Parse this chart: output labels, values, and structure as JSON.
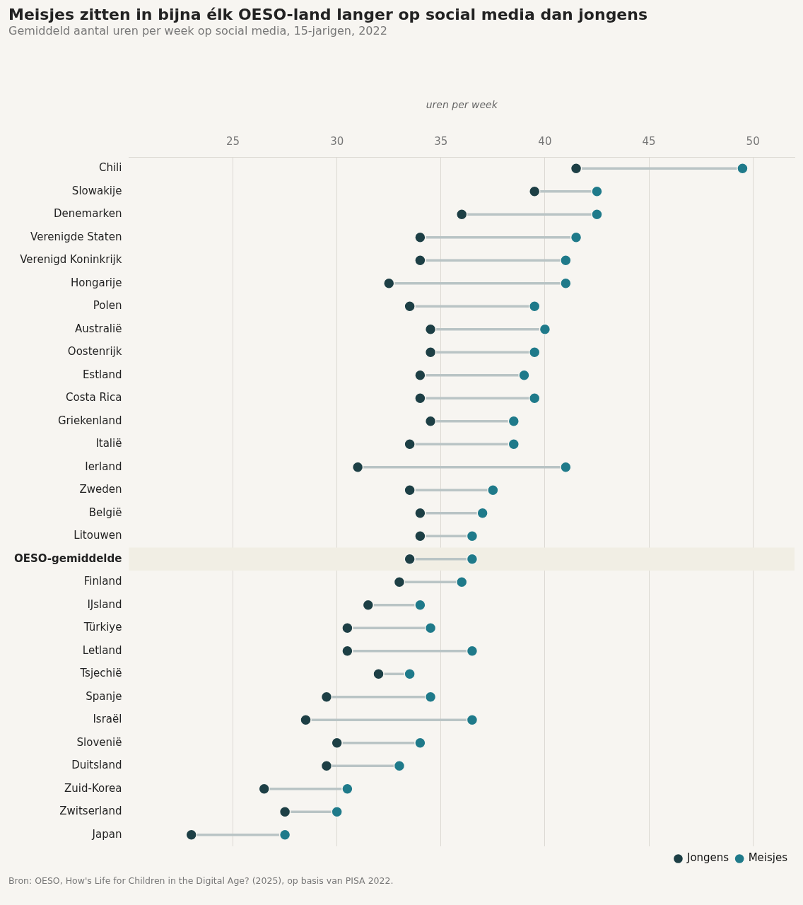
{
  "chart_data": {
    "type": "scatter",
    "orientation": "horizontal",
    "title": "Meisjes zitten in bijna élk OESO-land langer op social media dan jongens",
    "subtitle": "Gemiddeld aantal uren per week op social media, 15-jarigen, 2022",
    "xlabel": "uren per week",
    "categories": [
      "Chili",
      "Slowakije",
      "Denemarken",
      "Verenigde Staten",
      "Verenigd Koninkrijk",
      "Hongarije",
      "Polen",
      "Australië",
      "Oostenrijk",
      "Estland",
      "Costa Rica",
      "Griekenland",
      "Italië",
      "Ierland",
      "Zweden",
      "België",
      "Litouwen",
      "OESO-gemiddelde",
      "Finland",
      "IJsland",
      "Türkiye",
      "Letland",
      "Tsjechië",
      "Spanje",
      "Israël",
      "Slovenië",
      "Duitsland",
      "Zuid-Korea",
      "Zwitserland",
      "Japan"
    ],
    "series": [
      {
        "name": "Jongens",
        "color": "#1d3f45",
        "values": [
          41.5,
          39.5,
          36,
          34,
          34,
          32.5,
          33.5,
          34.5,
          34.5,
          34,
          34,
          34.5,
          33.5,
          31,
          33.5,
          34,
          34,
          33.5,
          33,
          31.5,
          30.5,
          30.5,
          32,
          29.5,
          28.5,
          30,
          29.5,
          26.5,
          27.5,
          23
        ]
      },
      {
        "name": "Meisjes",
        "color": "#1f7a8a",
        "values": [
          49.5,
          42.5,
          42.5,
          41.5,
          41,
          41,
          39.5,
          40,
          39.5,
          39,
          39.5,
          38.5,
          38.5,
          41,
          37.5,
          37,
          36.5,
          36.5,
          36,
          34,
          34.5,
          36.5,
          33.5,
          34.5,
          36.5,
          34,
          33,
          30.5,
          30,
          27.5
        ]
      }
    ],
    "xlim": [
      20,
      52
    ],
    "xticks": [
      25,
      30,
      35,
      40,
      45,
      50
    ],
    "grid": "x",
    "legend": "bottom right",
    "marker": "circle",
    "bands": [
      {
        "axis": "y",
        "from": "OESO-gemiddelde",
        "to": "OESO-gemiddelde",
        "color": "#f1eee4"
      }
    ],
    "annotations": [
      "Bron: OESO, How's Life for Children in the Digital Age? (2025), op basis van PISA 2022."
    ]
  }
}
